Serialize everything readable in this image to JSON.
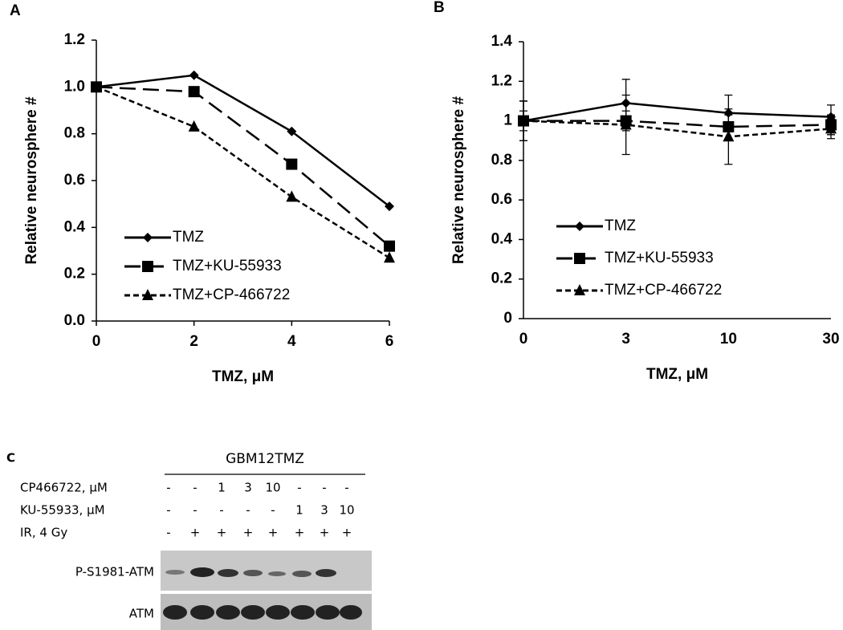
{
  "chart_data": [
    {
      "type": "line",
      "panel_label": "A",
      "x_label": "TMZ, μM",
      "y_label": "Relative neurosphere #",
      "x": [
        0,
        2,
        4,
        6
      ],
      "xlim": [
        0,
        6
      ],
      "xticks": [
        0,
        2,
        4,
        6
      ],
      "ylim": [
        0,
        1.2
      ],
      "yticks": [
        {
          "value": 0,
          "label": "0.0"
        },
        0.2,
        0.4,
        0.6,
        0.8,
        {
          "value": 1,
          "label": "1.0"
        },
        1.2
      ],
      "grid": false,
      "legend": "lower left",
      "series": [
        {
          "name": "TMZ",
          "color": "#000000",
          "line_style": "solid",
          "marker": "diamond",
          "values": [
            1.0,
            1.05,
            0.81,
            0.49
          ]
        },
        {
          "name": "TMZ+KU-55933",
          "color": "#000000",
          "line_style": "dashed",
          "marker": "square",
          "values": [
            1.0,
            0.98,
            0.67,
            0.32
          ]
        },
        {
          "name": "TMZ+CP-466722",
          "color": "#000000",
          "line_style": "dotted",
          "marker": "triangle",
          "values": [
            1.0,
            0.83,
            0.53,
            0.27
          ]
        }
      ]
    },
    {
      "type": "line",
      "panel_label": "B",
      "x_label": "TMZ, μM",
      "y_label": "Relative neurosphere #",
      "categories": [
        "0",
        "3",
        "10",
        "30"
      ],
      "ylim": [
        0,
        1.4
      ],
      "yticks": [
        0,
        0.2,
        0.4,
        0.6,
        0.8,
        1,
        1.2,
        1.4
      ],
      "grid": false,
      "legend": "lower left",
      "series": [
        {
          "name": "TMZ",
          "color": "#000000",
          "line_style": "solid",
          "marker": "diamond",
          "values": [
            1.0,
            1.09,
            1.04,
            1.02
          ],
          "errors": [
            0.1,
            0.12,
            0.09,
            0.06
          ]
        },
        {
          "name": "TMZ+KU-55933",
          "color": "#000000",
          "line_style": "dashed",
          "marker": "square",
          "values": [
            1.0,
            1.0,
            0.97,
            0.98
          ],
          "errors": [
            0.05,
            0.05,
            0.06,
            0.05
          ]
        },
        {
          "name": "TMZ+CP-466722",
          "color": "#000000",
          "line_style": "dotted",
          "marker": "triangle",
          "values": [
            1.0,
            0.98,
            0.92,
            0.96
          ],
          "errors": [
            0.1,
            0.15,
            0.14,
            0.05
          ]
        }
      ]
    }
  ],
  "blot": {
    "panel_label": "C",
    "title": "GBM12TMZ",
    "rows": [
      {
        "label": "CP466722, μM",
        "cells": [
          "-",
          "-",
          "1",
          "3",
          "10",
          "-",
          "-",
          "-"
        ]
      },
      {
        "label": "KU-55933, μM",
        "cells": [
          "-",
          "-",
          "-",
          "-",
          "-",
          "1",
          "3",
          "10"
        ]
      },
      {
        "label": "IR, 4 Gy",
        "cells": [
          "-",
          "+",
          "+",
          "+",
          "+",
          "+",
          "+",
          "+"
        ]
      }
    ],
    "bands": [
      "P-S1981-ATM",
      "ATM"
    ]
  }
}
